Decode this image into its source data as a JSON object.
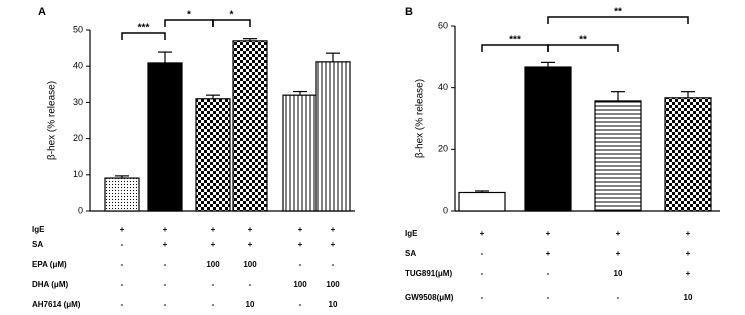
{
  "chart_data": [
    {
      "type": "bar",
      "panel_label": "A",
      "ylabel": "β-hex (% release)",
      "values": [
        9.1,
        40.9,
        31,
        47,
        32,
        41.2
      ],
      "errors": [
        0.6,
        3,
        1,
        0.6,
        1,
        2.4
      ],
      "fill_patterns": [
        "dots",
        "solid",
        "checker",
        "checker",
        "vlines",
        "vlines"
      ],
      "ylim": [
        0,
        50
      ],
      "yticks": [
        0,
        10,
        20,
        30,
        40,
        50
      ],
      "annotations": [
        "***",
        "*",
        "*"
      ],
      "conditions": [
        {
          "label": "IgE",
          "cells": [
            "+",
            "+",
            "+",
            "+",
            "+",
            "+"
          ]
        },
        {
          "label": "SA",
          "cells": [
            "-",
            "+",
            "+",
            "+",
            "+",
            "+"
          ]
        },
        {
          "label": "EPA (μM)",
          "cells": [
            "-",
            "-",
            "100",
            "100",
            "-",
            "-"
          ]
        },
        {
          "label": "DHA (μM)",
          "cells": [
            "-",
            "-",
            "-",
            "-",
            "100",
            "100"
          ]
        },
        {
          "label": "AH7614 (μM)",
          "cells": [
            "-",
            "-",
            "-",
            "10",
            "-",
            "10"
          ]
        }
      ]
    },
    {
      "type": "bar",
      "panel_label": "B",
      "ylabel": "β-hex (% release)",
      "values": [
        6,
        46.7,
        35.7,
        36.7
      ],
      "errors": [
        0.5,
        1.5,
        3,
        2
      ],
      "fill_patterns": [
        "none",
        "solid",
        "hlines",
        "checker"
      ],
      "ylim": [
        0,
        60
      ],
      "yticks": [
        0,
        20,
        40,
        60
      ],
      "annotations": [
        "***",
        "**",
        "**"
      ],
      "conditions": [
        {
          "label": "IgE",
          "cells": [
            "+",
            "+",
            "+",
            "+"
          ]
        },
        {
          "label": "SA",
          "cells": [
            "-",
            "+",
            "+",
            "+"
          ]
        },
        {
          "label": "TUG891(μM)",
          "cells": [
            "-",
            "-",
            "10",
            "+"
          ]
        },
        {
          "label": "GW9508(μM)",
          "cells": [
            "-",
            "-",
            "-",
            "10"
          ]
        }
      ]
    }
  ]
}
